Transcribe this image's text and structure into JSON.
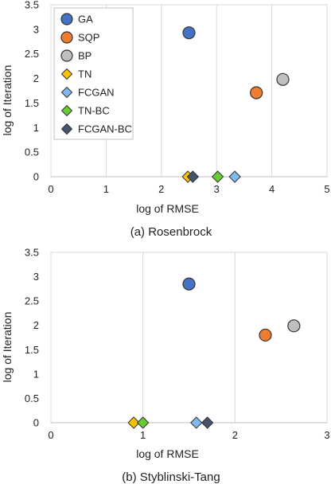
{
  "legend": {
    "entries": [
      {
        "name": "GA",
        "shape": "circle",
        "color": "#4472C4"
      },
      {
        "name": "SQP",
        "shape": "circle",
        "color": "#ED7D31"
      },
      {
        "name": "BP",
        "shape": "circle",
        "color": "#BFBFBF"
      },
      {
        "name": "TN",
        "shape": "diamond",
        "color": "#FFC000"
      },
      {
        "name": "FCGAN",
        "shape": "diamond",
        "color": "#7EB9F2"
      },
      {
        "name": "TN-BC",
        "shape": "diamond",
        "color": "#66CC33"
      },
      {
        "name": "FCGAN-BC",
        "shape": "diamond",
        "color": "#44546A"
      }
    ]
  },
  "chart_data": [
    {
      "type": "scatter",
      "caption": "(a) Rosenbrock",
      "xlabel": "log of RMSE",
      "ylabel": "log of Iteration",
      "xlim": [
        0,
        5
      ],
      "ylim": [
        0,
        3.5
      ],
      "xticks": [
        0,
        1,
        2,
        3,
        4,
        5
      ],
      "yticks": [
        0,
        0.5,
        1,
        1.5,
        2,
        2.5,
        3,
        3.5
      ],
      "legend_position": "top-left",
      "grid": "vertical",
      "series": [
        {
          "name": "GA",
          "x": [
            2.5
          ],
          "y": [
            2.93
          ]
        },
        {
          "name": "SQP",
          "x": [
            3.72
          ],
          "y": [
            1.71
          ]
        },
        {
          "name": "BP",
          "x": [
            4.2
          ],
          "y": [
            1.98
          ]
        },
        {
          "name": "TN",
          "x": [
            2.48
          ],
          "y": [
            0
          ]
        },
        {
          "name": "FCGAN",
          "x": [
            3.33
          ],
          "y": [
            0
          ]
        },
        {
          "name": "TN-BC",
          "x": [
            3.02
          ],
          "y": [
            0
          ]
        },
        {
          "name": "FCGAN-BC",
          "x": [
            2.57
          ],
          "y": [
            0
          ]
        }
      ]
    },
    {
      "type": "scatter",
      "caption": "(b) Styblinski-Tang",
      "xlabel": "log of RMSE",
      "ylabel": "log of Iteration",
      "xlim": [
        0,
        3
      ],
      "ylim": [
        0,
        3.5
      ],
      "xticks": [
        0,
        1,
        2,
        3
      ],
      "yticks": [
        0,
        0.5,
        1,
        1.5,
        2,
        2.5,
        3,
        3.5
      ],
      "grid": "vertical",
      "series": [
        {
          "name": "GA",
          "x": [
            1.5
          ],
          "y": [
            2.85
          ]
        },
        {
          "name": "SQP",
          "x": [
            2.33
          ],
          "y": [
            1.8
          ]
        },
        {
          "name": "BP",
          "x": [
            2.64
          ],
          "y": [
            1.99
          ]
        },
        {
          "name": "TN",
          "x": [
            0.9
          ],
          "y": [
            0
          ]
        },
        {
          "name": "FCGAN",
          "x": [
            1.58
          ],
          "y": [
            0
          ]
        },
        {
          "name": "TN-BC",
          "x": [
            1.0
          ],
          "y": [
            0
          ]
        },
        {
          "name": "FCGAN-BC",
          "x": [
            1.7
          ],
          "y": [
            0
          ]
        }
      ]
    }
  ]
}
